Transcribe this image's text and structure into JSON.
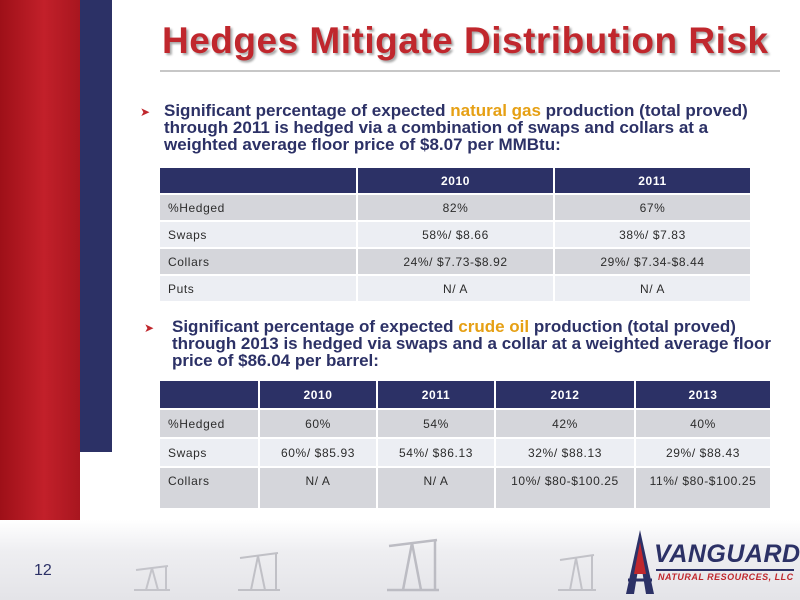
{
  "slide": {
    "title": "Hedges Mitigate Distribution Risk",
    "page_number": "12"
  },
  "gas_section": {
    "text_before": "Significant percentage of expected ",
    "highlight": "natural gas",
    "text_after": " production (total proved) through 2011 is hedged via a combination of swaps and collars at a weighted average floor price of $8.07 per MMBtu:",
    "table": {
      "columns": [
        "",
        "2010",
        "2011"
      ],
      "rows": [
        {
          "label": "%Hedged",
          "cells": [
            "82%",
            "67%"
          ]
        },
        {
          "label": "Swaps",
          "cells": [
            "58%/ $8.66",
            "38%/ $7.83"
          ]
        },
        {
          "label": "Collars",
          "cells": [
            "24%/ $7.73-$8.92",
            "29%/ $7.34-$8.44"
          ]
        },
        {
          "label": "Puts",
          "cells": [
            "N/ A",
            "N/ A"
          ]
        }
      ]
    }
  },
  "oil_section": {
    "text_before": "Significant percentage of expected ",
    "highlight": "crude oil",
    "text_after": " production (total proved) through 2013 is hedged via swaps and a collar at a weighted average floor price of $86.04 per barrel:",
    "table": {
      "columns": [
        "",
        "2010",
        "2011",
        "2012",
        "2013"
      ],
      "rows": [
        {
          "label": "%Hedged",
          "cells": [
            "60%",
            "54%",
            "42%",
            "40%"
          ]
        },
        {
          "label": "Swaps",
          "cells": [
            "60%/ $85.93",
            "54%/ $86.13",
            "32%/ $88.13",
            "29%/ $88.43"
          ]
        },
        {
          "label": "Collars",
          "cells": [
            "N/ A",
            "N/ A",
            "10%/ $80-$100.25",
            "11%/ $80-$100.25"
          ]
        }
      ]
    }
  },
  "logo": {
    "name": "VANGUARD",
    "subtitle": "NATURAL RESOURCES, LLC"
  },
  "colors": {
    "accent_red": "#c0272d",
    "navy": "#2c3166",
    "highlight_orange": "#e6a014"
  },
  "icons": [
    "bullet-arrow-icon",
    "oil-pumpjack-icon",
    "oil-derrick-logo-icon"
  ]
}
